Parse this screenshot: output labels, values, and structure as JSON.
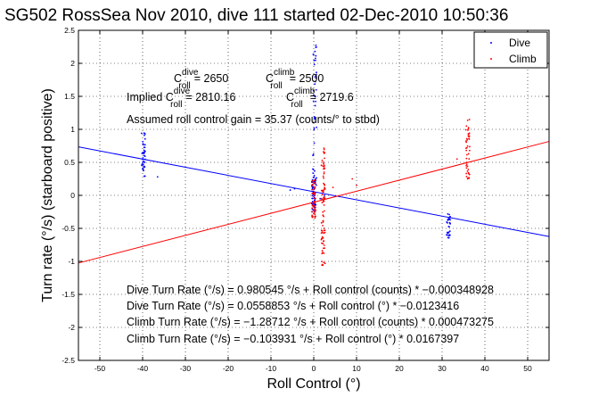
{
  "chart_data": {
    "type": "scatter",
    "title": "SG502 RossSea Nov 2010, dive 111 started 02-Dec-2010 10:50:36",
    "xlabel": "Roll Control (°)",
    "ylabel": "Turn rate (°/s) (starboard positive)",
    "xlim": [
      -55,
      55
    ],
    "ylim": [
      -2.5,
      2.5
    ],
    "xticks": [
      -50,
      -40,
      -30,
      -20,
      -10,
      0,
      10,
      20,
      30,
      40,
      50
    ],
    "yticks": [
      -2.5,
      -2,
      -1.5,
      -1,
      -0.5,
      0,
      0.5,
      1,
      1.5,
      2,
      2.5
    ],
    "grid": "dotted",
    "legend_position": "top-right",
    "series": [
      {
        "name": "Dive",
        "color": "#0000ff",
        "marker": "dot",
        "clusters": [
          {
            "x": -39.8,
            "y_range": [
              0.25,
              1.0
            ],
            "n": 40
          },
          {
            "x": 0.0,
            "y_range": [
              -0.25,
              0.25
            ],
            "n": 60
          },
          {
            "x": 0.2,
            "y_range": [
              0.1,
              2.3
            ],
            "n": 45
          },
          {
            "x": 31.5,
            "y_range": [
              -0.65,
              -0.25
            ],
            "n": 30
          }
        ],
        "points": [
          [
            -36.5,
            0.28
          ],
          [
            -4.5,
            0.1
          ],
          [
            -5.5,
            0.08
          ],
          [
            1.5,
            -0.05
          ],
          [
            2.5,
            0.0
          ]
        ]
      },
      {
        "name": "Climb",
        "color": "#ff0000",
        "marker": "dot",
        "clusters": [
          {
            "x": 0.0,
            "y_range": [
              -0.35,
              0.25
            ],
            "n": 50
          },
          {
            "x": 2.2,
            "y_range": [
              -1.1,
              0.75
            ],
            "n": 90
          },
          {
            "x": 36.0,
            "y_range": [
              0.25,
              1.15
            ],
            "n": 45
          }
        ],
        "points": [
          [
            4.5,
            0.12
          ],
          [
            10.0,
            0.15
          ],
          [
            9.0,
            0.25
          ],
          [
            33.5,
            0.55
          ]
        ]
      }
    ],
    "fit_lines": [
      {
        "name": "Dive fit",
        "color": "#0000ff",
        "slope": -0.0123416,
        "intercept": 0.0558853
      },
      {
        "name": "Climb fit",
        "color": "#ff0000",
        "slope": 0.0167397,
        "intercept": -0.103931
      }
    ],
    "annotations": {
      "c_dive_value": "= 2650",
      "c_climb_value": "= 2500",
      "implied_prefix": "Implied C",
      "implied_dive_value": "= 2810.16",
      "implied_climb_value": "= 2719.6",
      "gain_text": "Assumed roll control gain = 35.37 (counts/° to stbd)",
      "c_symbol": "C",
      "dive_sup": "dive",
      "climb_sup": "climb",
      "roll_sub": "roll",
      "eq_lines": [
        "Dive Turn Rate (°/s) = 0.980545 °/s + Roll control (counts) * −0.000348928",
        "Dive Turn Rate (°/s) = 0.0558853 °/s + Roll control (°) * −0.0123416",
        "Climb Turn Rate (°/s) = −1.28712 °/s + Roll control (counts) * 0.000473275",
        "Climb Turn Rate (°/s) = −0.103931 °/s + Roll control (°) * 0.0167397"
      ]
    }
  }
}
